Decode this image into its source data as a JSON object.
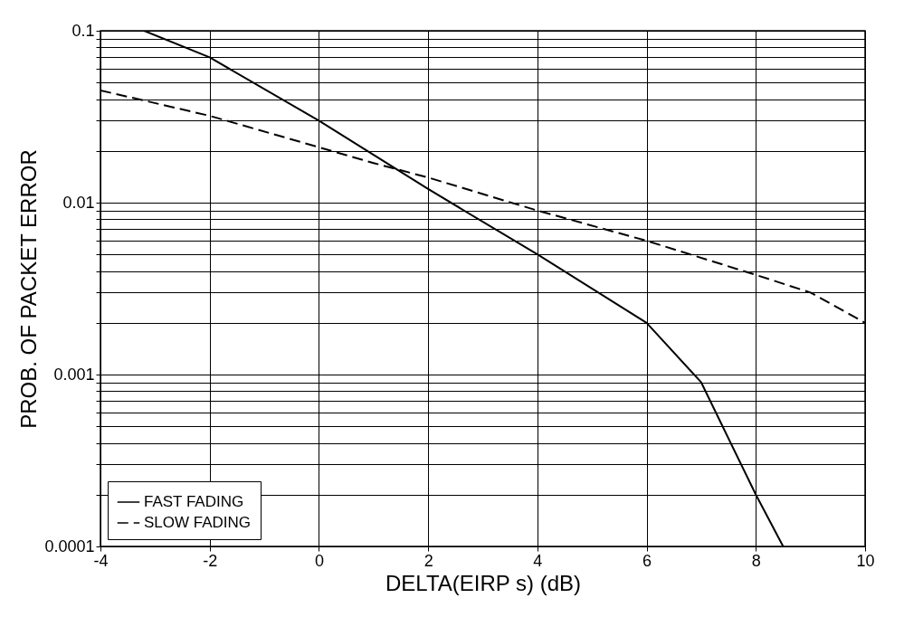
{
  "chart_data": {
    "type": "line",
    "xlabel": "DELTA(EIRP s) (dB)",
    "ylabel": "PROB. OF PACKET ERROR",
    "log": "y",
    "grid": true,
    "legend": "bottom left",
    "xlim": [
      -4,
      10
    ],
    "xticks": [
      -4,
      -2,
      0,
      2,
      4,
      6,
      8,
      10
    ],
    "ylim": [
      0.0001,
      0.1
    ],
    "yticks": [
      0.0001,
      {
        "value": 0.0002,
        "label": null
      },
      {
        "value": 0.0003,
        "label": null
      },
      {
        "value": 0.0004,
        "label": null
      },
      {
        "value": 0.0005,
        "label": null
      },
      {
        "value": 0.0006,
        "label": null
      },
      {
        "value": 0.0007,
        "label": null
      },
      {
        "value": 0.0008,
        "label": null
      },
      {
        "value": 0.0009,
        "label": null
      },
      0.001,
      {
        "value": 0.002,
        "label": null
      },
      {
        "value": 0.003,
        "label": null
      },
      {
        "value": 0.004,
        "label": null
      },
      {
        "value": 0.005,
        "label": null
      },
      {
        "value": 0.006,
        "label": null
      },
      {
        "value": 0.007,
        "label": null
      },
      {
        "value": 0.008,
        "label": null
      },
      {
        "value": 0.009,
        "label": null
      },
      0.01,
      {
        "value": 0.02,
        "label": null
      },
      {
        "value": 0.03,
        "label": null
      },
      {
        "value": 0.04,
        "label": null
      },
      {
        "value": 0.05,
        "label": null
      },
      {
        "value": 0.06,
        "label": null
      },
      {
        "value": 0.07,
        "label": null
      },
      {
        "value": 0.08,
        "label": null
      },
      {
        "value": 0.09,
        "label": null
      },
      0.1
    ],
    "series": [
      {
        "name": "FAST FADING",
        "color": "#000000",
        "line_style": "solid",
        "x": [
          -3.2,
          -2,
          0,
          2,
          4,
          6,
          7,
          8,
          8.5
        ],
        "values": [
          0.1,
          0.07,
          0.03,
          0.012,
          0.005,
          0.002,
          0.0009,
          0.0002,
          0.0001
        ]
      },
      {
        "name": "SLOW FADING",
        "color": "#000000",
        "line_style": "dashed",
        "x": [
          -4,
          -2,
          0,
          1,
          2,
          4,
          6,
          8,
          9,
          10
        ],
        "values": [
          0.045,
          0.032,
          0.021,
          0.017,
          0.014,
          0.009,
          0.006,
          0.0038,
          0.003,
          0.002
        ]
      }
    ]
  }
}
